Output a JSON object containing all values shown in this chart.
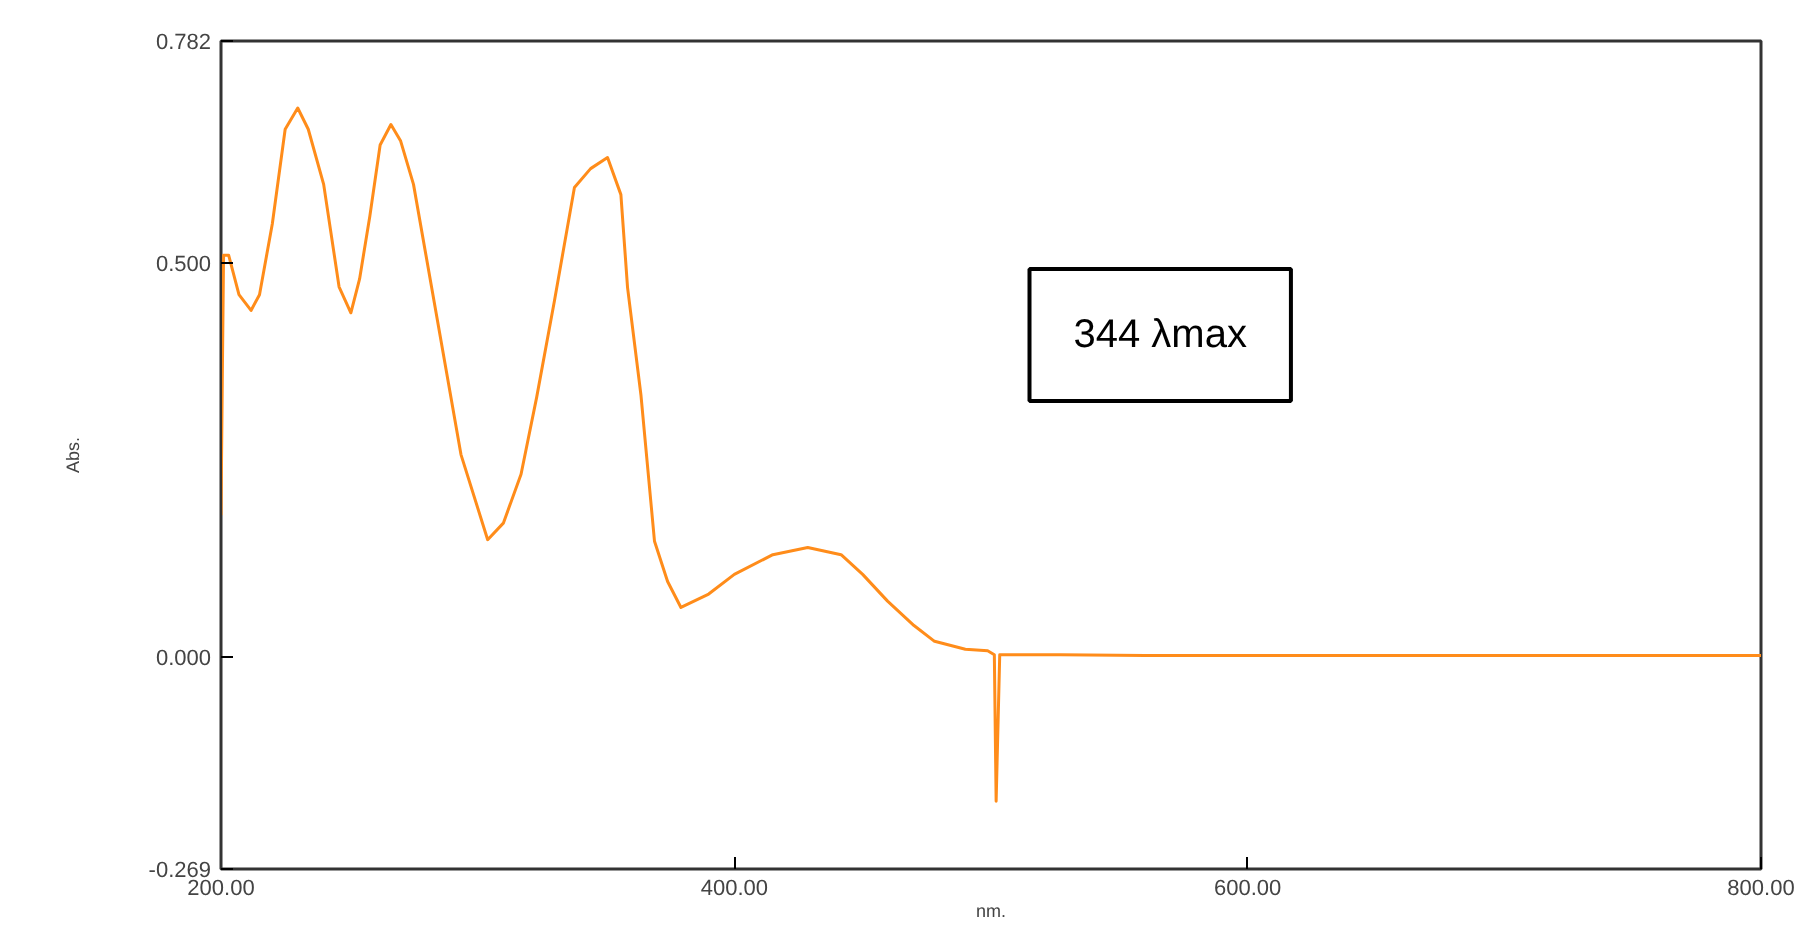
{
  "chart_data": {
    "type": "line",
    "xlabel": "nm.",
    "ylabel": "Abs.",
    "x": [
      200,
      200.5,
      201,
      203,
      207,
      211.7,
      215,
      220,
      225,
      229.9,
      234,
      240,
      246,
      250.6,
      254,
      258,
      262,
      266.2,
      270,
      275,
      284.4,
      293.5,
      303.9,
      310,
      316.9,
      323,
      329.9,
      337.7,
      344,
      350.6,
      355.8,
      358.4,
      363.6,
      368.9,
      374,
      379.2,
      390,
      400,
      415,
      428.6,
      441.6,
      450,
      459.7,
      470,
      478,
      490,
      498.7,
      501.3,
      502,
      503.4,
      510,
      527,
      560,
      600,
      650,
      700,
      750,
      800
    ],
    "series": [
      {
        "color": "#ff8c1a",
        "values": [
          0.18,
          0.35,
          0.51,
          0.51,
          0.46,
          0.44,
          0.46,
          0.55,
          0.67,
          0.697,
          0.67,
          0.6,
          0.47,
          0.437,
          0.48,
          0.56,
          0.65,
          0.676,
          0.655,
          0.6,
          0.426,
          0.257,
          0.149,
          0.17,
          0.232,
          0.33,
          0.452,
          0.596,
          0.62,
          0.634,
          0.587,
          0.469,
          0.333,
          0.147,
          0.096,
          0.063,
          0.08,
          0.105,
          0.13,
          0.139,
          0.13,
          0.105,
          0.071,
          0.04,
          0.02,
          0.01,
          0.008,
          0.003,
          -0.183,
          0.003,
          0.003,
          0.003,
          0.002,
          0.002,
          0.002,
          0.002,
          0.002,
          0.002
        ]
      }
    ],
    "xlim": [
      200,
      800
    ],
    "ylim": [
      -0.269,
      0.782
    ],
    "xticks": [
      {
        "value": 200,
        "label": "200.00"
      },
      {
        "value": 400,
        "label": "400.00"
      },
      {
        "value": 600,
        "label": "600.00"
      },
      {
        "value": 800,
        "label": "800.00"
      }
    ],
    "yticks": [
      {
        "value": -0.269,
        "label": "-0.269"
      },
      {
        "value": 0,
        "label": "0.000"
      },
      {
        "value": 0.5,
        "label": "0.500"
      },
      {
        "value": 0.782,
        "label": "0.782"
      }
    ],
    "annotations": [
      "344 λmax"
    ],
    "grid": false,
    "marker": "none",
    "line_style": "solid"
  }
}
